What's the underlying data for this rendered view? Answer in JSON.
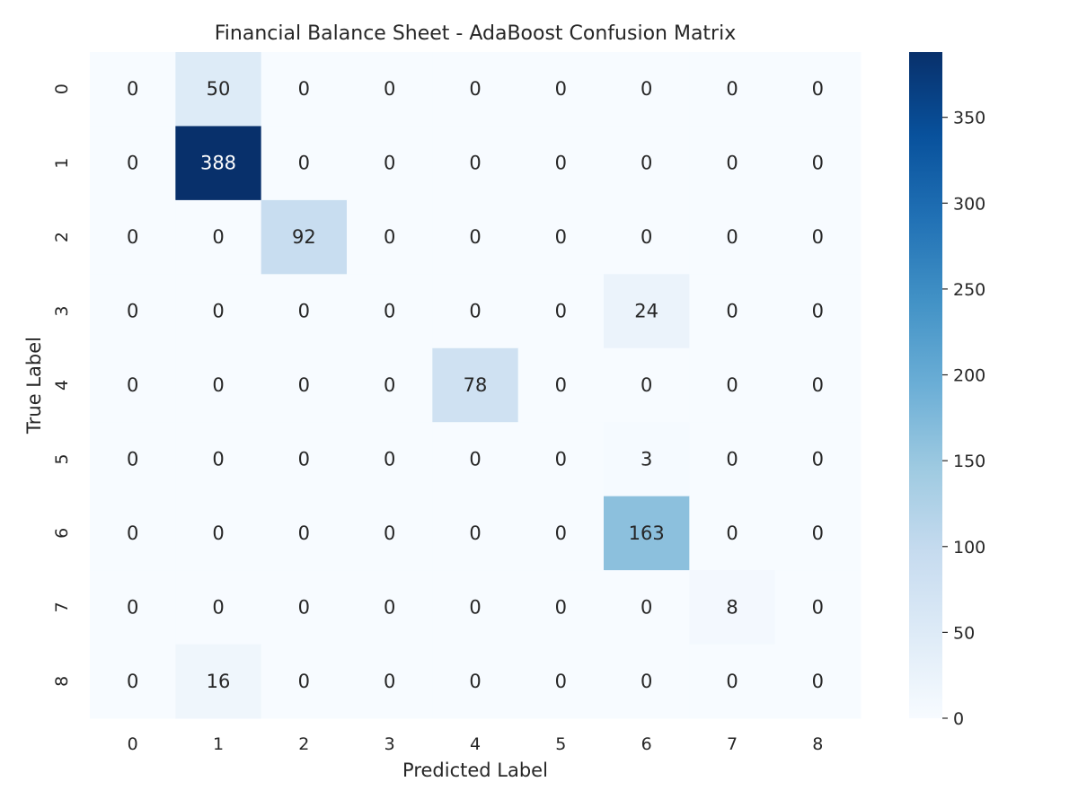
{
  "chart_data": {
    "type": "heatmap",
    "title": "Financial Balance Sheet - AdaBoost Confusion Matrix",
    "xlabel": "Predicted Label",
    "ylabel": "True Label",
    "x_categories": [
      "0",
      "1",
      "2",
      "3",
      "4",
      "5",
      "6",
      "7",
      "8"
    ],
    "y_categories": [
      "0",
      "1",
      "2",
      "3",
      "4",
      "5",
      "6",
      "7",
      "8"
    ],
    "values": [
      [
        0,
        50,
        0,
        0,
        0,
        0,
        0,
        0,
        0
      ],
      [
        0,
        388,
        0,
        0,
        0,
        0,
        0,
        0,
        0
      ],
      [
        0,
        0,
        92,
        0,
        0,
        0,
        0,
        0,
        0
      ],
      [
        0,
        0,
        0,
        0,
        0,
        0,
        24,
        0,
        0
      ],
      [
        0,
        0,
        0,
        0,
        78,
        0,
        0,
        0,
        0
      ],
      [
        0,
        0,
        0,
        0,
        0,
        0,
        3,
        0,
        0
      ],
      [
        0,
        0,
        0,
        0,
        0,
        0,
        163,
        0,
        0
      ],
      [
        0,
        0,
        0,
        0,
        0,
        0,
        0,
        8,
        0
      ],
      [
        0,
        16,
        0,
        0,
        0,
        0,
        0,
        0,
        0
      ]
    ],
    "colormap": "Blues",
    "color_range": [
      0,
      388
    ],
    "colorbar_ticks": [
      0,
      50,
      100,
      150,
      200,
      250,
      300,
      350
    ],
    "colors": {
      "low": "#f7fbff",
      "high": "#08306b",
      "text_dark": "#262626",
      "text_light": "#ffffff"
    }
  }
}
